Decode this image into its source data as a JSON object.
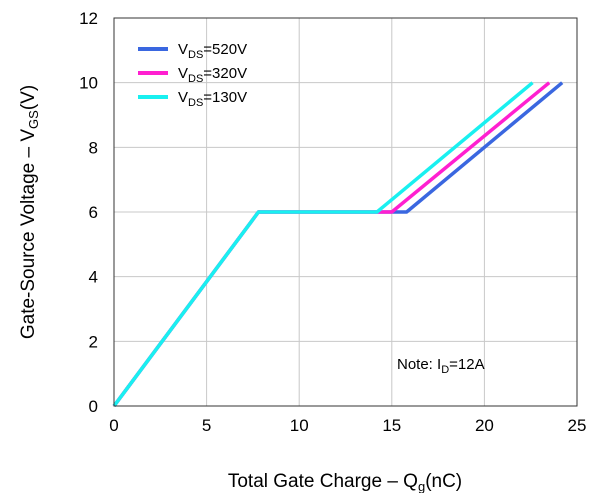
{
  "chart_data": {
    "type": "line",
    "xlabel_main": "Total Gate Charge  –  Q",
    "xlabel_sub": "g",
    "xlabel_unit": "(nC)",
    "ylabel_main": "Gate-Source Voltage  –  V",
    "ylabel_sub": "GS",
    "ylabel_unit": "(V)",
    "xlim": [
      0,
      25
    ],
    "ylim": [
      0,
      12
    ],
    "x_ticks": [
      0,
      5,
      10,
      15,
      20,
      25
    ],
    "y_ticks": [
      0,
      2,
      4,
      6,
      8,
      10,
      12
    ],
    "x_tick_labels": [
      "0",
      "5",
      "10",
      "15",
      "20",
      "25"
    ],
    "y_tick_labels": [
      "0",
      "2",
      "4",
      "6",
      "8",
      "10",
      "12"
    ],
    "grid": true,
    "legend_position": "top-left",
    "series": [
      {
        "name": "VDS=520V",
        "label_main": "V",
        "label_sub": "DS",
        "label_rest": "=520V",
        "color": "#3a67e0",
        "points": [
          [
            0,
            0
          ],
          [
            7.8,
            6
          ],
          [
            15.8,
            6
          ],
          [
            24.2,
            10
          ]
        ]
      },
      {
        "name": "VDS=320V",
        "label_main": "V",
        "label_sub": "DS",
        "label_rest": "=320V",
        "color": "#ff1fd0",
        "points": [
          [
            0,
            0
          ],
          [
            7.8,
            6
          ],
          [
            15.0,
            6
          ],
          [
            23.5,
            10
          ]
        ]
      },
      {
        "name": "VDS=130V",
        "label_main": "V",
        "label_sub": "DS",
        "label_rest": "=130V",
        "color": "#19f0f0",
        "points": [
          [
            0,
            0
          ],
          [
            7.8,
            6
          ],
          [
            14.2,
            6
          ],
          [
            22.6,
            10
          ]
        ]
      }
    ],
    "note": {
      "main": "Note: I",
      "sub": "D",
      "rest": "=12A"
    }
  }
}
